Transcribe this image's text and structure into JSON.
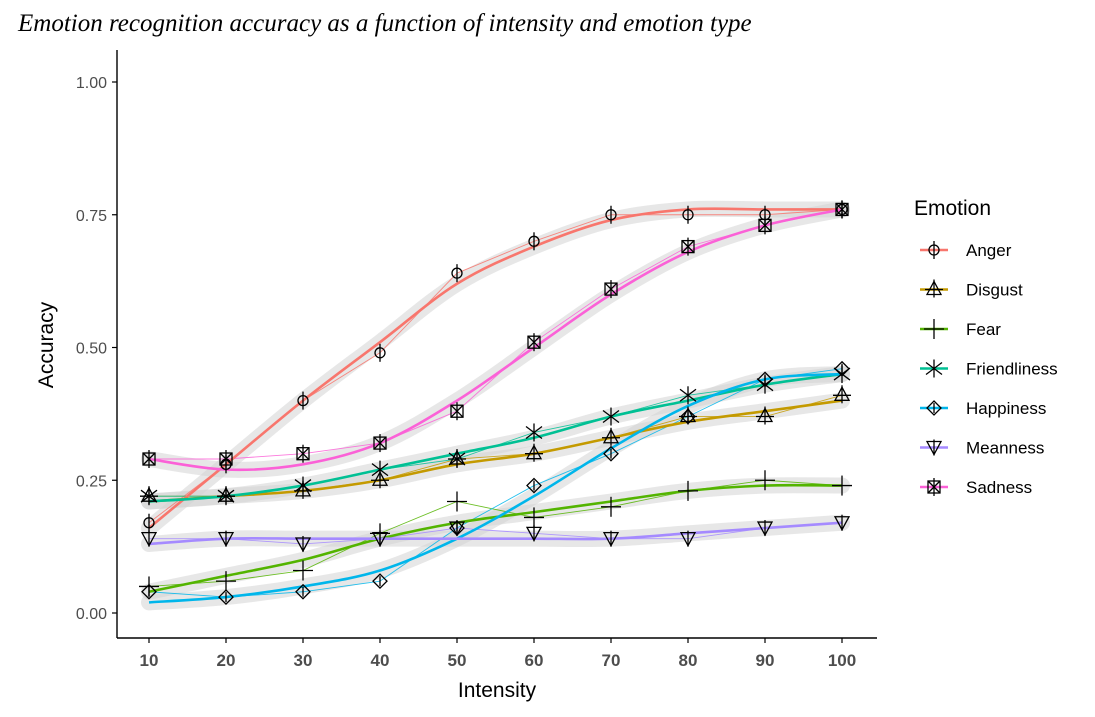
{
  "chart_data": {
    "type": "line",
    "title": "Emotion recognition accuracy as a function of intensity and emotion type",
    "xlabel": "Intensity",
    "ylabel": "Accuracy",
    "xlim": [
      10,
      100
    ],
    "ylim": [
      0,
      1
    ],
    "x": [
      10,
      20,
      30,
      40,
      50,
      60,
      70,
      80,
      90,
      100
    ],
    "y_ticks": [
      "0.00",
      "0.25",
      "0.50",
      "0.75",
      "1.00"
    ],
    "x_ticks": [
      "10",
      "20",
      "30",
      "40",
      "50",
      "60",
      "70",
      "80",
      "90",
      "100"
    ],
    "legend": {
      "title": "Emotion",
      "position": "right"
    },
    "grid": false,
    "series": [
      {
        "name": "Anger",
        "color": "#F8766D",
        "marker": "circle-bar",
        "observed": [
          0.17,
          0.28,
          0.4,
          0.49,
          0.64,
          0.7,
          0.75,
          0.75,
          0.75,
          0.76
        ],
        "fitted": [
          0.16,
          0.28,
          0.4,
          0.51,
          0.62,
          0.69,
          0.74,
          0.76,
          0.76,
          0.76
        ]
      },
      {
        "name": "Disgust",
        "color": "#C49A00",
        "marker": "triangle-cross",
        "observed": [
          0.22,
          0.22,
          0.23,
          0.25,
          0.29,
          0.3,
          0.33,
          0.37,
          0.37,
          0.41
        ],
        "fitted": [
          0.21,
          0.22,
          0.23,
          0.25,
          0.28,
          0.3,
          0.33,
          0.36,
          0.38,
          0.4
        ]
      },
      {
        "name": "Fear",
        "color": "#53B400",
        "marker": "plus",
        "observed": [
          0.05,
          0.06,
          0.08,
          0.15,
          0.21,
          0.18,
          0.2,
          0.23,
          0.25,
          0.24
        ],
        "fitted": [
          0.04,
          0.07,
          0.1,
          0.14,
          0.17,
          0.19,
          0.21,
          0.23,
          0.24,
          0.24
        ]
      },
      {
        "name": "Friendliness",
        "color": "#00C094",
        "marker": "asterisk",
        "observed": [
          0.22,
          0.22,
          0.24,
          0.27,
          0.29,
          0.34,
          0.37,
          0.41,
          0.43,
          0.45
        ],
        "fitted": [
          0.21,
          0.22,
          0.24,
          0.27,
          0.3,
          0.33,
          0.37,
          0.4,
          0.43,
          0.45
        ]
      },
      {
        "name": "Happiness",
        "color": "#00B6EB",
        "marker": "diamond-bar",
        "observed": [
          0.04,
          0.03,
          0.04,
          0.06,
          0.16,
          0.24,
          0.3,
          0.37,
          0.44,
          0.46
        ],
        "fitted": [
          0.02,
          0.03,
          0.05,
          0.08,
          0.14,
          0.22,
          0.31,
          0.39,
          0.44,
          0.45
        ]
      },
      {
        "name": "Meanness",
        "color": "#A58AFF",
        "marker": "triangle-down-bar",
        "observed": [
          0.14,
          0.14,
          0.13,
          0.14,
          0.16,
          0.15,
          0.14,
          0.14,
          0.16,
          0.17
        ],
        "fitted": [
          0.13,
          0.14,
          0.14,
          0.14,
          0.14,
          0.14,
          0.14,
          0.15,
          0.16,
          0.17
        ]
      },
      {
        "name": "Sadness",
        "color": "#FB61D7",
        "marker": "square-cross",
        "observed": [
          0.29,
          0.29,
          0.3,
          0.32,
          0.38,
          0.51,
          0.61,
          0.69,
          0.73,
          0.76
        ],
        "fitted": [
          0.29,
          0.27,
          0.28,
          0.32,
          0.4,
          0.5,
          0.6,
          0.68,
          0.73,
          0.76
        ]
      }
    ]
  }
}
